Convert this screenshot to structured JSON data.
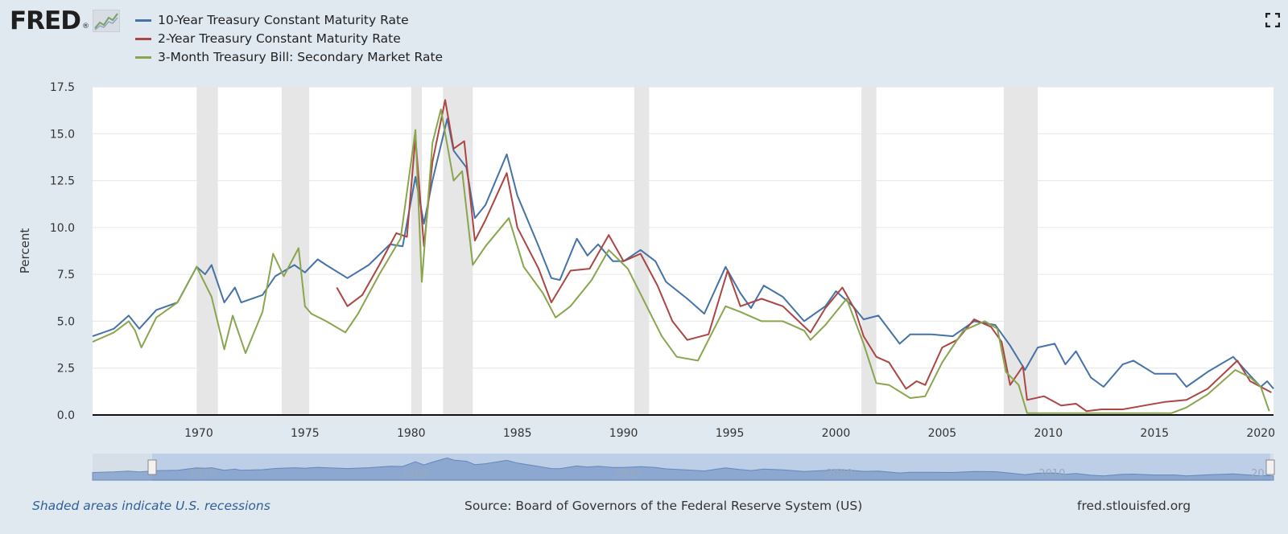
{
  "logo": {
    "text": "FRED",
    "reg": "®"
  },
  "legend": [
    {
      "label": "10-Year Treasury Constant Maturity Rate",
      "color": "#4572a7"
    },
    {
      "label": "2-Year Treasury Constant Maturity Rate",
      "color": "#aa4643"
    },
    {
      "label": "3-Month Treasury Bill: Secondary Market Rate",
      "color": "#89a54e"
    }
  ],
  "footer": {
    "note": "Shaded areas indicate U.S. recessions",
    "source": "Source: Board of Governors of the Federal Reserve System (US)",
    "site": "fred.stlouisfed.org"
  },
  "navigator": {
    "labels": [
      "1970",
      "1980",
      "1990",
      "2000",
      "2010",
      "20"
    ]
  },
  "chart_data": {
    "type": "line",
    "title": "",
    "xlabel": "",
    "ylabel": "Percent",
    "xlim": [
      1965.0,
      2020.6
    ],
    "ylim": [
      0,
      17.5
    ],
    "yticks": [
      0.0,
      2.5,
      5.0,
      7.5,
      10.0,
      12.5,
      15.0,
      17.5
    ],
    "xticks": [
      1970,
      1975,
      1980,
      1985,
      1990,
      1995,
      2000,
      2005,
      2010,
      2015,
      2020
    ],
    "grid": true,
    "recessions": [
      [
        1969.9,
        1970.9
      ],
      [
        1973.9,
        1975.2
      ],
      [
        1980.0,
        1980.5
      ],
      [
        1981.5,
        1982.9
      ],
      [
        1990.5,
        1991.2
      ],
      [
        2001.2,
        2001.9
      ],
      [
        2007.9,
        2009.5
      ]
    ],
    "series": [
      {
        "name": "10-Year Treasury Constant Maturity Rate",
        "color": "#4572a7",
        "points": [
          [
            1965.0,
            4.2
          ],
          [
            1966.0,
            4.6
          ],
          [
            1966.7,
            5.3
          ],
          [
            1967.2,
            4.6
          ],
          [
            1968.0,
            5.6
          ],
          [
            1969.0,
            6.0
          ],
          [
            1969.9,
            7.9
          ],
          [
            1970.3,
            7.5
          ],
          [
            1970.6,
            8.0
          ],
          [
            1971.2,
            6.0
          ],
          [
            1971.7,
            6.8
          ],
          [
            1972.0,
            6.0
          ],
          [
            1973.0,
            6.4
          ],
          [
            1973.6,
            7.4
          ],
          [
            1974.5,
            8.0
          ],
          [
            1975.0,
            7.6
          ],
          [
            1975.6,
            8.3
          ],
          [
            1976.0,
            8.0
          ],
          [
            1977.0,
            7.3
          ],
          [
            1978.0,
            8.0
          ],
          [
            1979.0,
            9.1
          ],
          [
            1979.6,
            9.0
          ],
          [
            1980.2,
            12.7
          ],
          [
            1980.6,
            10.2
          ],
          [
            1981.0,
            12.5
          ],
          [
            1981.7,
            15.8
          ],
          [
            1982.0,
            14.1
          ],
          [
            1982.6,
            13.2
          ],
          [
            1983.0,
            10.5
          ],
          [
            1983.5,
            11.2
          ],
          [
            1984.5,
            13.9
          ],
          [
            1985.0,
            11.7
          ],
          [
            1986.0,
            9.0
          ],
          [
            1986.6,
            7.3
          ],
          [
            1987.0,
            7.2
          ],
          [
            1987.8,
            9.4
          ],
          [
            1988.3,
            8.5
          ],
          [
            1988.8,
            9.1
          ],
          [
            1989.5,
            8.2
          ],
          [
            1990.0,
            8.2
          ],
          [
            1990.8,
            8.8
          ],
          [
            1991.5,
            8.2
          ],
          [
            1992.0,
            7.1
          ],
          [
            1993.0,
            6.2
          ],
          [
            1993.8,
            5.4
          ],
          [
            1994.8,
            7.9
          ],
          [
            1995.5,
            6.5
          ],
          [
            1996.0,
            5.7
          ],
          [
            1996.6,
            6.9
          ],
          [
            1997.5,
            6.3
          ],
          [
            1998.5,
            5.0
          ],
          [
            1999.5,
            5.8
          ],
          [
            2000.0,
            6.6
          ],
          [
            2000.8,
            5.8
          ],
          [
            2001.3,
            5.1
          ],
          [
            2002.0,
            5.3
          ],
          [
            2003.0,
            3.8
          ],
          [
            2003.5,
            4.3
          ],
          [
            2004.5,
            4.3
          ],
          [
            2005.5,
            4.2
          ],
          [
            2006.5,
            5.0
          ],
          [
            2007.5,
            4.8
          ],
          [
            2008.2,
            3.7
          ],
          [
            2008.9,
            2.4
          ],
          [
            2009.5,
            3.6
          ],
          [
            2010.3,
            3.8
          ],
          [
            2010.8,
            2.7
          ],
          [
            2011.3,
            3.4
          ],
          [
            2012.0,
            2.0
          ],
          [
            2012.6,
            1.5
          ],
          [
            2013.5,
            2.7
          ],
          [
            2014.0,
            2.9
          ],
          [
            2015.0,
            2.2
          ],
          [
            2016.0,
            2.2
          ],
          [
            2016.5,
            1.5
          ],
          [
            2017.5,
            2.3
          ],
          [
            2018.7,
            3.1
          ],
          [
            2019.5,
            2.1
          ],
          [
            2020.0,
            1.5
          ],
          [
            2020.3,
            1.8
          ],
          [
            2020.6,
            1.4
          ]
        ]
      },
      {
        "name": "2-Year Treasury Constant Maturity Rate",
        "color": "#aa4643",
        "points": [
          [
            1976.5,
            6.8
          ],
          [
            1977.0,
            5.8
          ],
          [
            1977.7,
            6.4
          ],
          [
            1978.5,
            8.0
          ],
          [
            1979.3,
            9.7
          ],
          [
            1979.8,
            9.5
          ],
          [
            1980.2,
            14.8
          ],
          [
            1980.6,
            9.0
          ],
          [
            1981.0,
            13.5
          ],
          [
            1981.6,
            16.8
          ],
          [
            1982.0,
            14.2
          ],
          [
            1982.5,
            14.6
          ],
          [
            1983.0,
            9.3
          ],
          [
            1983.5,
            10.4
          ],
          [
            1984.5,
            12.9
          ],
          [
            1985.0,
            10.0
          ],
          [
            1986.0,
            7.8
          ],
          [
            1986.6,
            6.0
          ],
          [
            1987.5,
            7.7
          ],
          [
            1988.4,
            7.8
          ],
          [
            1989.3,
            9.6
          ],
          [
            1990.0,
            8.2
          ],
          [
            1990.8,
            8.6
          ],
          [
            1991.6,
            6.9
          ],
          [
            1992.3,
            5.0
          ],
          [
            1993.0,
            4.0
          ],
          [
            1994.0,
            4.3
          ],
          [
            1994.9,
            7.7
          ],
          [
            1995.5,
            5.8
          ],
          [
            1996.5,
            6.2
          ],
          [
            1997.5,
            5.8
          ],
          [
            1998.8,
            4.4
          ],
          [
            1999.5,
            5.7
          ],
          [
            2000.3,
            6.8
          ],
          [
            2000.9,
            5.6
          ],
          [
            2001.3,
            4.2
          ],
          [
            2001.9,
            3.1
          ],
          [
            2002.5,
            2.8
          ],
          [
            2003.3,
            1.4
          ],
          [
            2003.8,
            1.8
          ],
          [
            2004.2,
            1.6
          ],
          [
            2005.0,
            3.6
          ],
          [
            2005.7,
            4.0
          ],
          [
            2006.5,
            5.1
          ],
          [
            2007.3,
            4.7
          ],
          [
            2007.8,
            3.9
          ],
          [
            2008.2,
            1.6
          ],
          [
            2008.8,
            2.6
          ],
          [
            2009.0,
            0.8
          ],
          [
            2009.8,
            1.0
          ],
          [
            2010.6,
            0.5
          ],
          [
            2011.3,
            0.6
          ],
          [
            2011.8,
            0.2
          ],
          [
            2012.5,
            0.3
          ],
          [
            2013.5,
            0.3
          ],
          [
            2014.5,
            0.5
          ],
          [
            2015.5,
            0.7
          ],
          [
            2016.5,
            0.8
          ],
          [
            2017.5,
            1.4
          ],
          [
            2018.9,
            2.9
          ],
          [
            2019.5,
            1.8
          ],
          [
            2020.0,
            1.5
          ],
          [
            2020.5,
            1.2
          ]
        ]
      },
      {
        "name": "3-Month Treasury Bill: Secondary Market Rate",
        "color": "#89a54e",
        "points": [
          [
            1965.0,
            3.9
          ],
          [
            1966.0,
            4.4
          ],
          [
            1966.7,
            5.0
          ],
          [
            1967.0,
            4.5
          ],
          [
            1967.3,
            3.6
          ],
          [
            1968.0,
            5.2
          ],
          [
            1969.0,
            6.0
          ],
          [
            1969.9,
            7.9
          ],
          [
            1970.6,
            6.3
          ],
          [
            1971.2,
            3.5
          ],
          [
            1971.6,
            5.3
          ],
          [
            1972.2,
            3.3
          ],
          [
            1973.0,
            5.5
          ],
          [
            1973.5,
            8.6
          ],
          [
            1974.0,
            7.4
          ],
          [
            1974.7,
            8.9
          ],
          [
            1975.0,
            5.8
          ],
          [
            1975.3,
            5.4
          ],
          [
            1976.0,
            5.0
          ],
          [
            1976.9,
            4.4
          ],
          [
            1977.5,
            5.4
          ],
          [
            1978.5,
            7.5
          ],
          [
            1979.5,
            9.4
          ],
          [
            1980.2,
            15.2
          ],
          [
            1980.5,
            7.1
          ],
          [
            1981.0,
            14.5
          ],
          [
            1981.4,
            16.3
          ],
          [
            1982.0,
            12.5
          ],
          [
            1982.4,
            13.0
          ],
          [
            1982.9,
            8.0
          ],
          [
            1983.5,
            9.0
          ],
          [
            1984.6,
            10.5
          ],
          [
            1985.3,
            7.9
          ],
          [
            1986.2,
            6.5
          ],
          [
            1986.8,
            5.2
          ],
          [
            1987.5,
            5.8
          ],
          [
            1988.5,
            7.2
          ],
          [
            1989.3,
            8.8
          ],
          [
            1990.2,
            7.8
          ],
          [
            1991.0,
            6.0
          ],
          [
            1991.8,
            4.2
          ],
          [
            1992.5,
            3.1
          ],
          [
            1993.5,
            2.9
          ],
          [
            1994.8,
            5.8
          ],
          [
            1995.5,
            5.5
          ],
          [
            1996.5,
            5.0
          ],
          [
            1997.5,
            5.0
          ],
          [
            1998.5,
            4.5
          ],
          [
            1998.8,
            4.0
          ],
          [
            1999.5,
            4.8
          ],
          [
            2000.5,
            6.2
          ],
          [
            2001.3,
            3.8
          ],
          [
            2001.9,
            1.7
          ],
          [
            2002.5,
            1.6
          ],
          [
            2003.5,
            0.9
          ],
          [
            2004.2,
            1.0
          ],
          [
            2005.0,
            2.8
          ],
          [
            2006.0,
            4.5
          ],
          [
            2007.0,
            5.0
          ],
          [
            2007.6,
            4.6
          ],
          [
            2008.0,
            2.3
          ],
          [
            2008.6,
            1.6
          ],
          [
            2009.0,
            0.1
          ],
          [
            2010.0,
            0.1
          ],
          [
            2015.8,
            0.1
          ],
          [
            2016.5,
            0.4
          ],
          [
            2017.5,
            1.1
          ],
          [
            2018.8,
            2.4
          ],
          [
            2019.5,
            2.0
          ],
          [
            2020.0,
            1.5
          ],
          [
            2020.4,
            0.2
          ]
        ]
      }
    ]
  }
}
